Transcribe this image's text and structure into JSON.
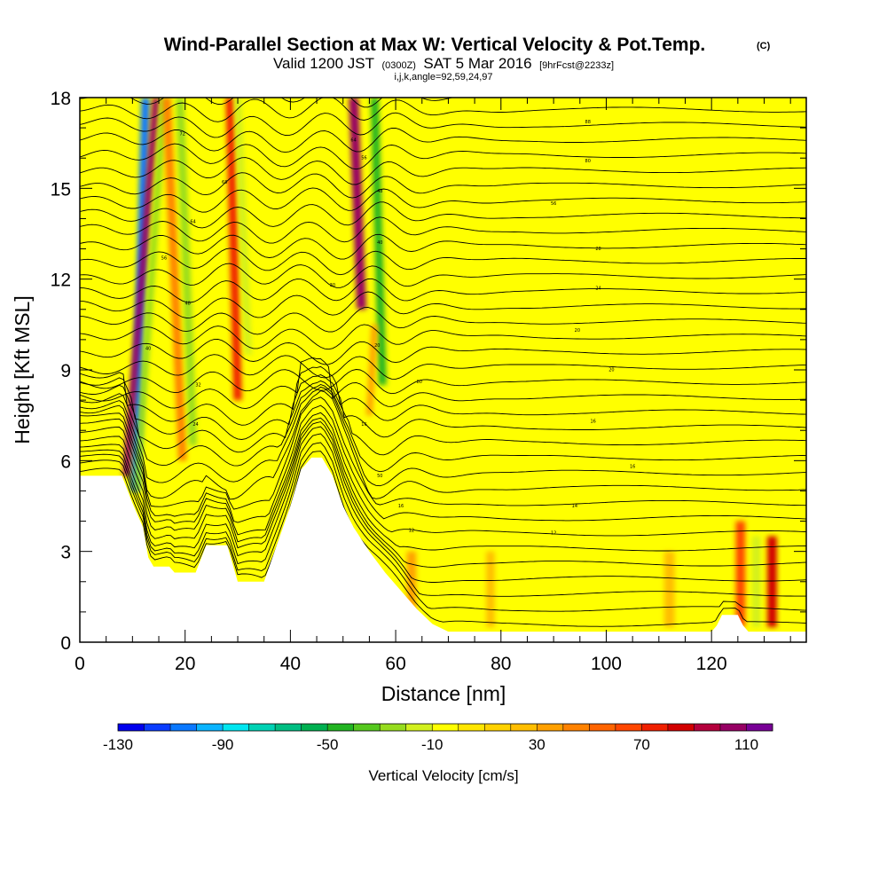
{
  "chart_data": {
    "type": "heatmap",
    "title": "Wind-Parallel Section at Max W: Vertical Velocity & Pot.Temp.",
    "copyright_mark": "(C)",
    "subtitle": {
      "valid_prefix": "Valid 1200 JST",
      "utc": "(0300Z)",
      "date": "SAT 5 Mar 2016",
      "forecast": "[9hrFcst@2233z]"
    },
    "params": "i,j,k,angle=92,59,24,97",
    "xlabel": "Distance [nm]",
    "ylabel": "Height [Kft MSL]",
    "xlim": [
      0,
      138
    ],
    "ylim": [
      0,
      18
    ],
    "x_ticks": [
      "0",
      "20",
      "40",
      "60",
      "80",
      "100",
      "120"
    ],
    "y_ticks": [
      "0",
      "3",
      "6",
      "9",
      "12",
      "15",
      "18"
    ],
    "colorbar": {
      "label": "Vertical Velocity [cm/s]",
      "tick_labels": [
        "-130",
        "-90",
        "-50",
        "-10",
        "30",
        "70",
        "110"
      ],
      "colors": [
        "#0000ee",
        "#0a3cff",
        "#0a78ff",
        "#0ab4ff",
        "#00e6f0",
        "#00d2b4",
        "#00be82",
        "#00b050",
        "#22b422",
        "#55c81e",
        "#96dc1e",
        "#d2f01e",
        "#ffff00",
        "#ffe600",
        "#ffd200",
        "#ffbe00",
        "#ffa000",
        "#ff8200",
        "#ff6400",
        "#ff4600",
        "#f02000",
        "#d20000",
        "#b4003c",
        "#960064",
        "#780096"
      ]
    },
    "terrain_profile": [
      [
        0,
        5.5
      ],
      [
        8,
        5.5
      ],
      [
        10,
        4.6
      ],
      [
        12,
        3.8
      ],
      [
        13,
        2.8
      ],
      [
        14,
        2.5
      ],
      [
        17,
        2.5
      ],
      [
        18,
        2.3
      ],
      [
        22,
        2.3
      ],
      [
        24,
        3.2
      ],
      [
        28,
        3.2
      ],
      [
        30,
        2.0
      ],
      [
        35,
        2.0
      ],
      [
        38,
        3.5
      ],
      [
        40,
        4.5
      ],
      [
        42,
        5.7
      ],
      [
        44,
        6.1
      ],
      [
        46,
        6.1
      ],
      [
        48,
        5.5
      ],
      [
        50,
        4.5
      ],
      [
        52,
        3.8
      ],
      [
        55,
        3.0
      ],
      [
        58,
        2.3
      ],
      [
        61,
        1.7
      ],
      [
        64,
        1.1
      ],
      [
        67,
        0.6
      ],
      [
        70,
        0.35
      ],
      [
        120,
        0.35
      ],
      [
        121,
        0.55
      ],
      [
        122,
        0.9
      ],
      [
        125,
        0.9
      ],
      [
        126,
        0.55
      ],
      [
        127,
        0.35
      ],
      [
        138,
        0.35
      ]
    ],
    "vertical_velocity_features": [
      {
        "x_bottom": 10.5,
        "y_bottom": 5.0,
        "x_top": 12.5,
        "y_top": 18,
        "width": 1.6,
        "value": -110
      },
      {
        "x_bottom": 8.8,
        "y_bottom": 5.5,
        "x_top": 14.5,
        "y_top": 18,
        "width": 1.3,
        "value": 95
      },
      {
        "x_bottom": 10.8,
        "y_bottom": 5.0,
        "x_top": 16.0,
        "y_top": 18,
        "width": 1.2,
        "value": -35
      },
      {
        "x_bottom": 19.5,
        "y_bottom": 6.0,
        "x_top": 16.5,
        "y_top": 18,
        "width": 1.6,
        "value": 40
      },
      {
        "x_bottom": 21.5,
        "y_bottom": 6.5,
        "x_top": 19.0,
        "y_top": 18,
        "width": 1.5,
        "value": -30
      },
      {
        "x_bottom": 30.0,
        "y_bottom": 8.0,
        "x_top": 28.5,
        "y_top": 18,
        "width": 1.6,
        "value": 70
      },
      {
        "x_bottom": 32.0,
        "y_bottom": 9.5,
        "x_top": 30.0,
        "y_top": 18,
        "width": 1.4,
        "value": -25
      },
      {
        "x_bottom": 53.5,
        "y_bottom": 11.0,
        "x_top": 52.0,
        "y_top": 18,
        "width": 1.8,
        "value": 95
      },
      {
        "x_bottom": 57.5,
        "y_bottom": 8.5,
        "x_top": 56.0,
        "y_top": 18,
        "width": 1.5,
        "value": -55
      },
      {
        "x_bottom": 55.0,
        "y_bottom": 7.5,
        "x_top": 56.0,
        "y_top": 10.5,
        "width": 1.2,
        "value": 30
      },
      {
        "x_bottom": 32.0,
        "y_bottom": 2.5,
        "x_top": 34.0,
        "y_top": 5.0,
        "width": 3.5,
        "value": -15
      },
      {
        "x_bottom": 96.5,
        "y_bottom": 12.0,
        "x_top": 97.0,
        "y_top": 17.0,
        "width": 2.0,
        "value": -15
      },
      {
        "x_bottom": 118.0,
        "y_bottom": 12.0,
        "x_top": 118.0,
        "y_top": 18.0,
        "width": 1.8,
        "value": -15
      },
      {
        "x_bottom": 125.5,
        "y_bottom": 0.5,
        "x_top": 125.5,
        "y_top": 4.0,
        "width": 1.8,
        "value": 55
      },
      {
        "x_bottom": 128.5,
        "y_bottom": 0.5,
        "x_top": 128.5,
        "y_top": 3.5,
        "width": 1.6,
        "value": -25
      },
      {
        "x_bottom": 131.5,
        "y_bottom": 0.5,
        "x_top": 131.5,
        "y_top": 3.5,
        "width": 1.8,
        "value": 75
      },
      {
        "x_bottom": 112.0,
        "y_bottom": 0.5,
        "x_top": 112.0,
        "y_top": 3.0,
        "width": 2.0,
        "value": 15
      },
      {
        "x_bottom": 78.0,
        "y_bottom": 0.5,
        "x_top": 78.0,
        "y_top": 3.0,
        "width": 1.6,
        "value": 20
      },
      {
        "x_bottom": 63.0,
        "y_bottom": 0.5,
        "x_top": 63.0,
        "y_top": 3.0,
        "width": 1.8,
        "value": 25
      }
    ],
    "isentrope_labels": [
      {
        "text": "72",
        "x": 19.5,
        "y": 16.8
      },
      {
        "text": "68",
        "x": 27.5,
        "y": 15.2
      },
      {
        "text": "64",
        "x": 21.5,
        "y": 13.9
      },
      {
        "text": "56",
        "x": 16.0,
        "y": 12.7
      },
      {
        "text": "48",
        "x": 20.5,
        "y": 11.2
      },
      {
        "text": "40",
        "x": 13.0,
        "y": 9.7
      },
      {
        "text": "32",
        "x": 22.5,
        "y": 8.5
      },
      {
        "text": "24",
        "x": 22.0,
        "y": 7.2
      },
      {
        "text": "64",
        "x": 52.0,
        "y": 16.6
      },
      {
        "text": "56",
        "x": 54.0,
        "y": 16.0
      },
      {
        "text": "48",
        "x": 57.0,
        "y": 14.9
      },
      {
        "text": "40",
        "x": 57.0,
        "y": 13.2
      },
      {
        "text": "30",
        "x": 48.0,
        "y": 11.8
      },
      {
        "text": "20",
        "x": 56.5,
        "y": 9.8
      },
      {
        "text": "80",
        "x": 64.5,
        "y": 8.6
      },
      {
        "text": "16",
        "x": 54.0,
        "y": 7.2
      },
      {
        "text": "50",
        "x": 57.0,
        "y": 5.5
      },
      {
        "text": "16",
        "x": 61.0,
        "y": 4.5
      },
      {
        "text": "12",
        "x": 63.0,
        "y": 3.7
      },
      {
        "text": "88",
        "x": 96.5,
        "y": 17.2
      },
      {
        "text": "80",
        "x": 96.5,
        "y": 15.9
      },
      {
        "text": "56",
        "x": 90.0,
        "y": 14.5
      },
      {
        "text": "28",
        "x": 98.5,
        "y": 13.0
      },
      {
        "text": "24",
        "x": 98.5,
        "y": 11.7
      },
      {
        "text": "20",
        "x": 94.5,
        "y": 10.3
      },
      {
        "text": "20",
        "x": 101.0,
        "y": 9.0
      },
      {
        "text": "16",
        "x": 97.5,
        "y": 7.3
      },
      {
        "text": "16",
        "x": 105.0,
        "y": 5.8
      },
      {
        "text": "14",
        "x": 94.0,
        "y": 4.5
      },
      {
        "text": "12",
        "x": 90.0,
        "y": 3.6
      }
    ]
  }
}
